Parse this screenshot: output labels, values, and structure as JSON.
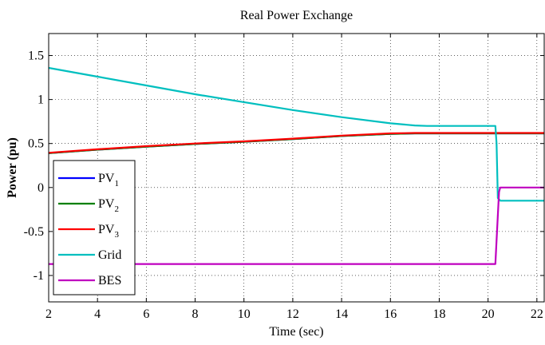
{
  "chart_data": {
    "type": "line",
    "title": "Real Power Exchange",
    "xlabel": "Time (sec)",
    "ylabel": "Power (pu)",
    "xlim": [
      2,
      22.3
    ],
    "ylim": [
      -1.3,
      1.75
    ],
    "xticks": [
      2,
      4,
      6,
      8,
      10,
      12,
      14,
      16,
      18,
      20,
      22
    ],
    "xtick_labels": [
      "2",
      "4",
      "6",
      "8",
      "10",
      "12",
      "14",
      "16",
      "18",
      "20",
      "22"
    ],
    "yticks": [
      -1,
      -0.5,
      0,
      0.5,
      1,
      1.5
    ],
    "ytick_labels": [
      "-1",
      "-0.5",
      "0",
      "0.5",
      "1",
      "1.5"
    ],
    "grid": true,
    "legend_position": "bottom-left",
    "series": [
      {
        "name": "PV",
        "subscript": "1",
        "color": "#0000ff",
        "x": [
          2,
          4,
          6,
          8,
          10,
          12,
          14,
          16,
          17,
          20.35,
          22.3
        ],
        "y": [
          0.39,
          0.43,
          0.465,
          0.495,
          0.52,
          0.55,
          0.585,
          0.61,
          0.615,
          0.615,
          0.615
        ]
      },
      {
        "name": "PV",
        "subscript": "2",
        "color": "#008000",
        "x": [
          2,
          4,
          6,
          8,
          10,
          12,
          14,
          16,
          17,
          20.35,
          22.3
        ],
        "y": [
          0.39,
          0.43,
          0.465,
          0.495,
          0.52,
          0.55,
          0.585,
          0.61,
          0.615,
          0.615,
          0.615
        ]
      },
      {
        "name": "PV",
        "subscript": "3",
        "color": "#ff0000",
        "x": [
          2,
          4,
          6,
          8,
          10,
          12,
          14,
          16,
          17,
          20.35,
          22.3
        ],
        "y": [
          0.395,
          0.435,
          0.47,
          0.5,
          0.525,
          0.555,
          0.59,
          0.615,
          0.62,
          0.62,
          0.62
        ]
      },
      {
        "name": "Grid",
        "subscript": "",
        "color": "#00bfbf",
        "x": [
          2,
          4,
          6,
          8,
          10,
          12,
          14,
          16,
          17,
          17.5,
          20.3,
          20.35,
          20.4,
          20.5,
          22.3
        ],
        "y": [
          1.36,
          1.26,
          1.16,
          1.06,
          0.97,
          0.88,
          0.8,
          0.73,
          0.705,
          0.7,
          0.7,
          0.5,
          -0.12,
          -0.15,
          -0.15
        ]
      },
      {
        "name": "BES",
        "subscript": "",
        "color": "#bf00bf",
        "x": [
          2,
          20.3,
          20.35,
          20.45,
          20.5,
          22.3
        ],
        "y": [
          -0.87,
          -0.87,
          -0.6,
          -0.05,
          0,
          0
        ]
      }
    ]
  }
}
